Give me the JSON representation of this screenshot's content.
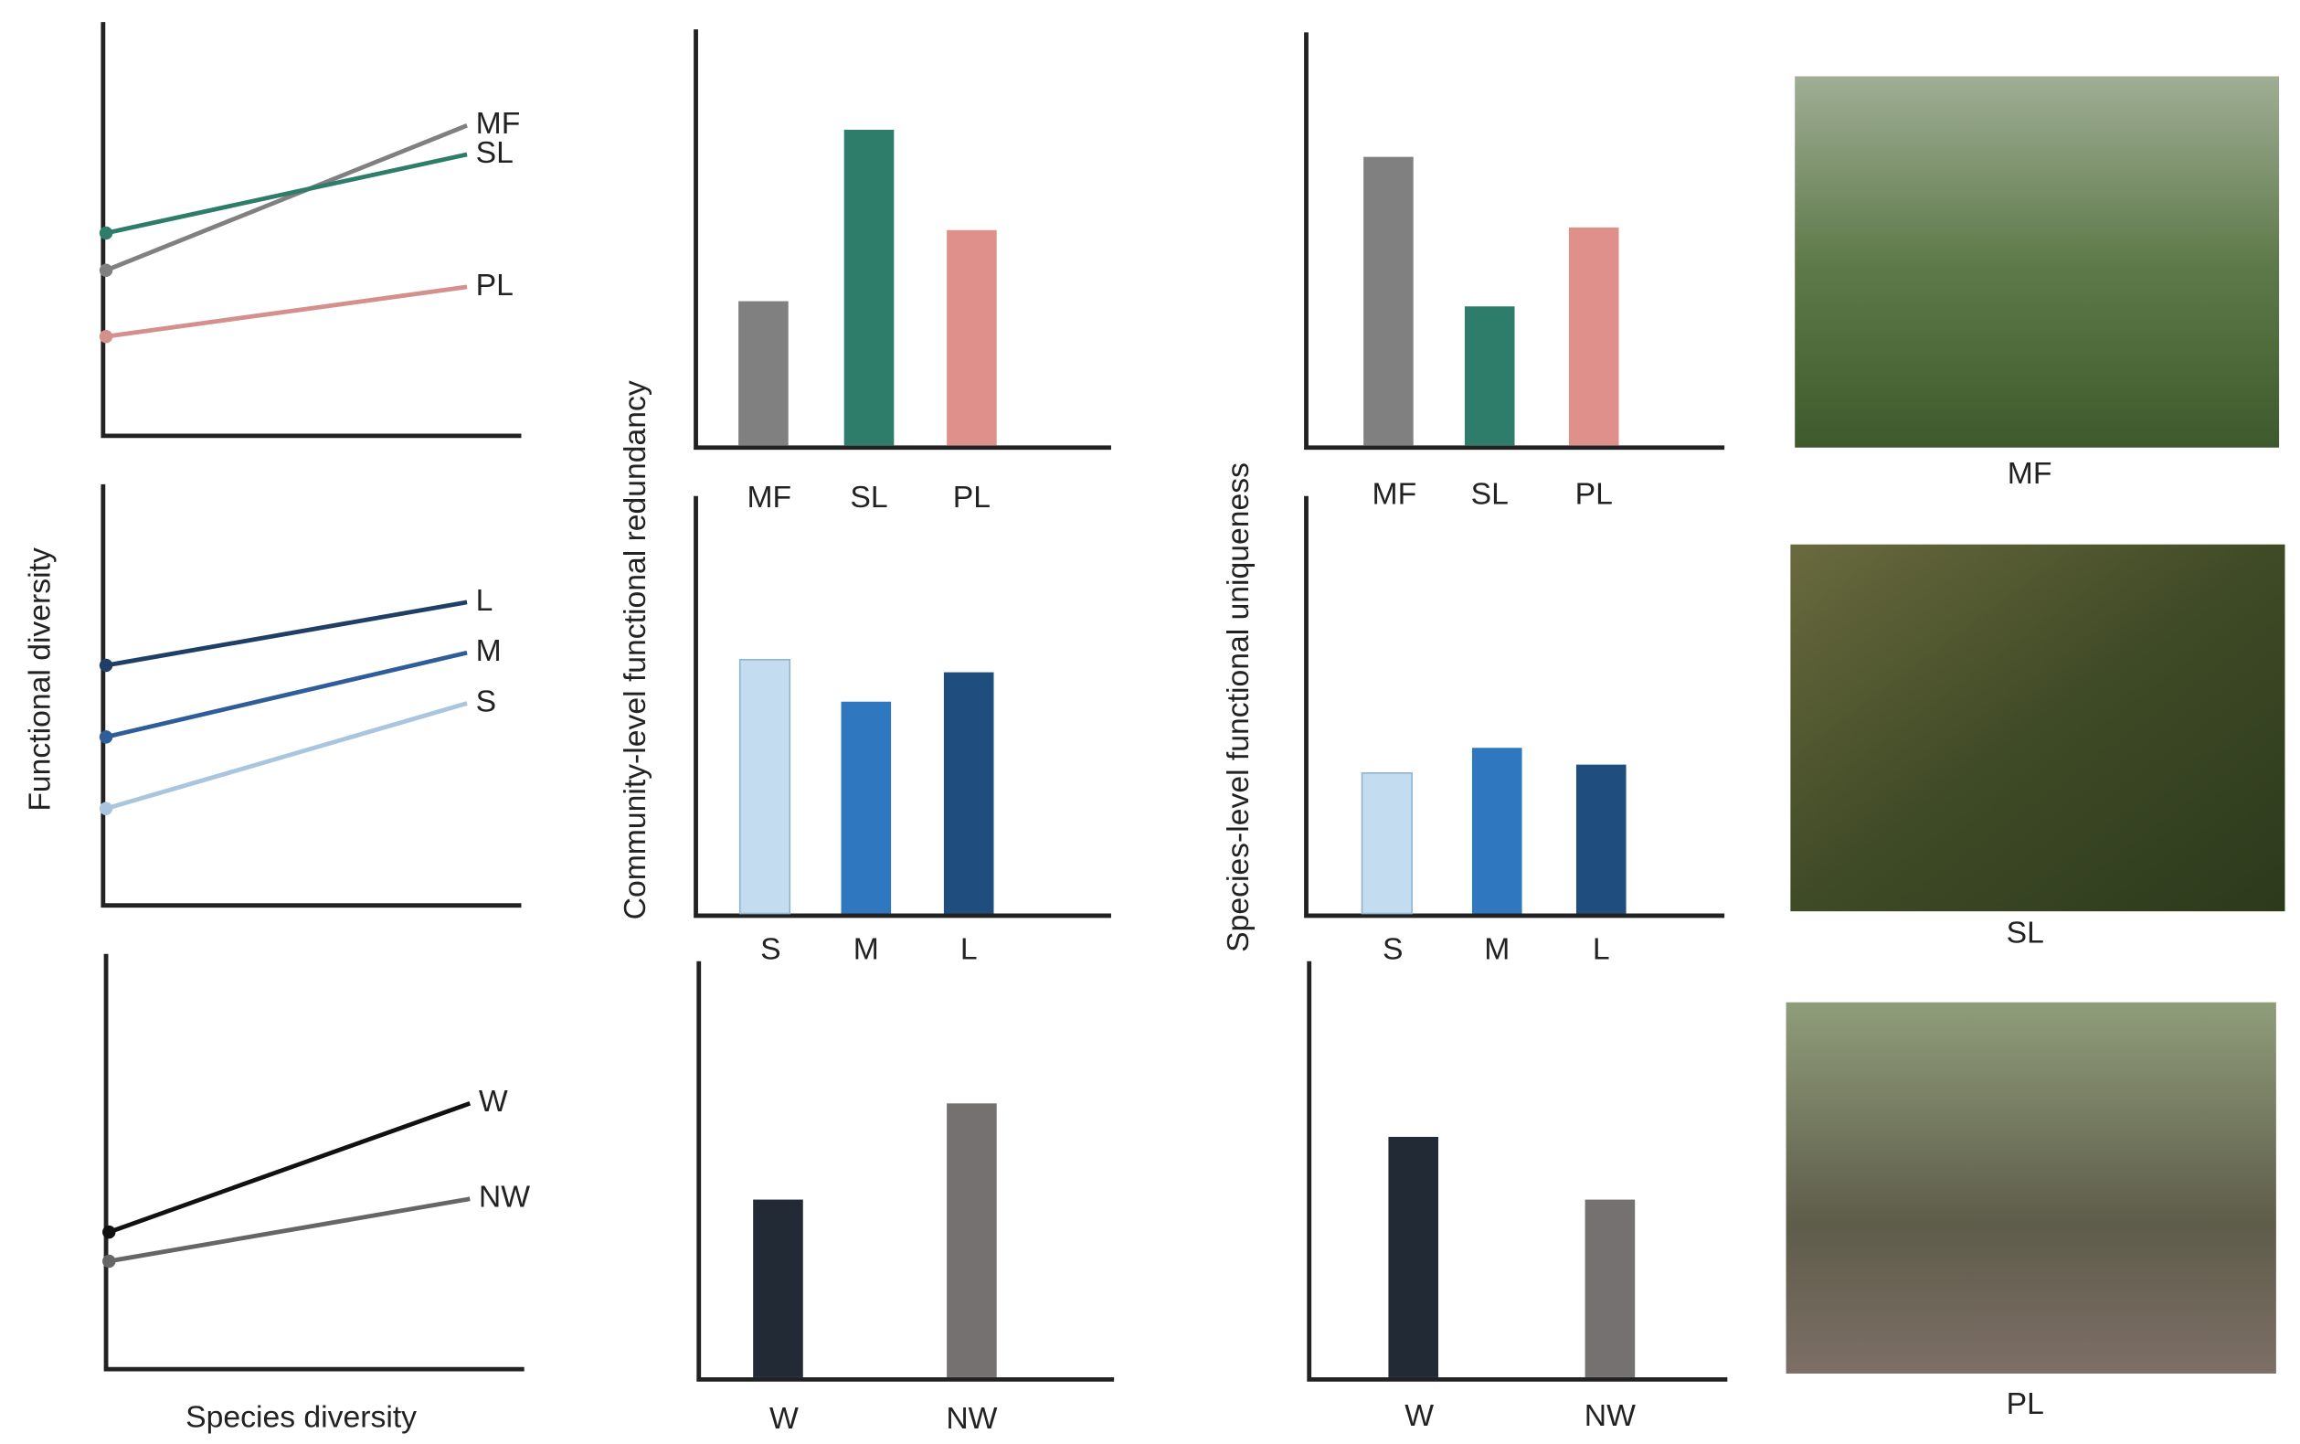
{
  "chart_data": [
    {
      "type": "line",
      "categories": [
        null,
        null
      ],
      "ylim": [
        0,
        100
      ],
      "series": [
        {
          "name": "MF",
          "color": "#808080",
          "values": [
            40,
            75
          ]
        },
        {
          "name": "SL",
          "color": "#2e7d6b",
          "values": [
            49,
            68
          ]
        },
        {
          "name": "PL",
          "color": "#d4908c",
          "values": [
            24,
            36
          ]
        }
      ]
    },
    {
      "type": "line",
      "categories": [
        null,
        null
      ],
      "ylim": [
        0,
        100
      ],
      "ylabel": "Functional diversity",
      "series": [
        {
          "name": "L",
          "color": "#1f3f66",
          "values": [
            57,
            72
          ]
        },
        {
          "name": "M",
          "color": "#2e5d9a",
          "values": [
            40,
            60
          ]
        },
        {
          "name": "S",
          "color": "#a9c6de",
          "values": [
            23,
            48
          ]
        }
      ]
    },
    {
      "type": "line",
      "categories": [
        null,
        null
      ],
      "ylim": [
        0,
        100
      ],
      "xlabel": "Species diversity",
      "series": [
        {
          "name": "W",
          "color": "#111111",
          "values": [
            33,
            64
          ]
        },
        {
          "name": "NW",
          "color": "#666666",
          "values": [
            26,
            41
          ]
        }
      ]
    },
    {
      "type": "bar",
      "categories": [
        "MF",
        "SL",
        "PL"
      ],
      "values": [
        35,
        76,
        52
      ],
      "colors": [
        "#808080",
        "#2e7d6b",
        "#e0908a"
      ],
      "ylim": [
        0,
        100
      ]
    },
    {
      "type": "bar",
      "categories": [
        "S",
        "M",
        "L"
      ],
      "values": [
        61,
        51,
        58
      ],
      "colors": [
        "#c4dcf0",
        "#2f78c0",
        "#1f4e7e"
      ],
      "ylim": [
        0,
        100
      ],
      "ylabel": "Community-level functional redundancy"
    },
    {
      "type": "bar",
      "categories": [
        "W",
        "NW"
      ],
      "values": [
        43,
        66
      ],
      "colors": [
        "#222a35",
        "#767171"
      ],
      "ylim": [
        0,
        100
      ]
    },
    {
      "type": "bar",
      "categories": [
        "MF",
        "SL",
        "PL"
      ],
      "values": [
        70,
        34,
        53
      ],
      "colors": [
        "#808080",
        "#2e7d6b",
        "#e0908a"
      ],
      "ylim": [
        0,
        100
      ]
    },
    {
      "type": "bar",
      "categories": [
        "S",
        "M",
        "L"
      ],
      "values": [
        34,
        40,
        36
      ],
      "colors": [
        "#c4dcf0",
        "#2f78c0",
        "#1f4e7e"
      ],
      "ylim": [
        0,
        100
      ],
      "ylabel": "Species-level functional uniqueness"
    },
    {
      "type": "bar",
      "categories": [
        "W",
        "NW"
      ],
      "values": [
        58,
        43
      ],
      "colors": [
        "#222a35",
        "#767171"
      ],
      "ylim": [
        0,
        100
      ]
    }
  ],
  "photos": [
    {
      "caption": "MF"
    },
    {
      "caption": "SL"
    },
    {
      "caption": "PL"
    }
  ]
}
